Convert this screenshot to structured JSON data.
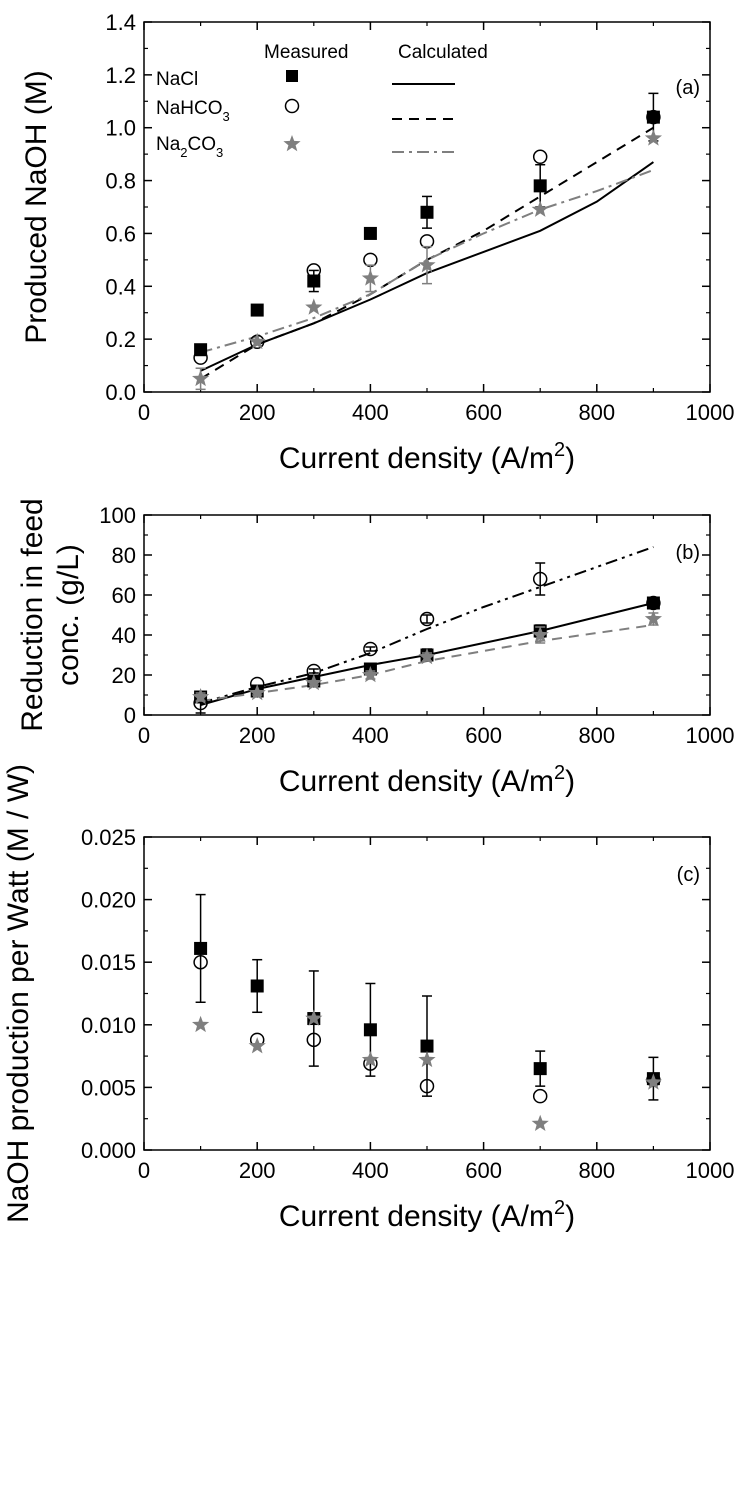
{
  "colors": {
    "nacl": "#000000",
    "nahco3": "#000000",
    "na2co3": "#7f7f7f"
  },
  "legend": {
    "measured_header": "Measured",
    "calculated_header": "Calculated",
    "nacl_label": "NaCl",
    "nahco3_label": "NaHCO",
    "nahco3_sub": "3",
    "na2co3_label_a": "Na",
    "na2co3_sub_a": "2",
    "na2co3_label_b": "CO",
    "na2co3_sub_b": "3"
  },
  "chart_data": [
    {
      "type": "scatter",
      "panel_label": "(a)",
      "xlabel": "Current density (A/m",
      "xlabel_sup": "2",
      "xlabel_end": ")",
      "ylabel": "Produced NaOH (M)",
      "xlim": [
        0,
        1000
      ],
      "ylim": [
        0,
        1.4
      ],
      "xticks": [
        "0",
        "200",
        "400",
        "600",
        "800",
        "1000"
      ],
      "yticks": [
        "0.0",
        "0.2",
        "0.4",
        "0.6",
        "0.8",
        "1.0",
        "1.2",
        "1.4"
      ],
      "measured": [
        {
          "name": "NaCl",
          "marker": "square",
          "color": "#000000",
          "x": [
            100,
            200,
            300,
            400,
            500,
            700,
            900
          ],
          "y": [
            0.16,
            0.31,
            0.42,
            0.6,
            0.68,
            0.78,
            1.04
          ],
          "err": [
            0.0,
            0.0,
            0.04,
            0.0,
            0.06,
            0.08,
            0.09
          ]
        },
        {
          "name": "NaHCO3",
          "marker": "circle",
          "color": "#000000",
          "x": [
            100,
            200,
            300,
            400,
            500,
            700,
            900
          ],
          "y": [
            0.13,
            0.19,
            0.46,
            0.5,
            0.57,
            0.89,
            1.04
          ],
          "err": [
            0.0,
            0.0,
            0.0,
            0.0,
            0.0,
            0.0,
            0.0
          ]
        },
        {
          "name": "Na2CO3",
          "marker": "star",
          "color": "#7f7f7f",
          "x": [
            100,
            200,
            300,
            400,
            500,
            700,
            900
          ],
          "y": [
            0.05,
            0.19,
            0.32,
            0.43,
            0.48,
            0.69,
            0.96
          ],
          "err": [
            0.04,
            0.0,
            0.0,
            0.05,
            0.07,
            0.0,
            0.0
          ]
        }
      ],
      "calculated": [
        {
          "name": "NaCl",
          "style": "solid",
          "color": "#000000",
          "x": [
            100,
            200,
            300,
            400,
            500,
            600,
            700,
            800,
            900
          ],
          "y": [
            0.08,
            0.18,
            0.26,
            0.35,
            0.45,
            0.53,
            0.61,
            0.72,
            0.87
          ]
        },
        {
          "name": "NaHCO3",
          "style": "dash",
          "color": "#000000",
          "x": [
            100,
            200,
            300,
            400,
            500,
            600,
            700,
            800,
            900
          ],
          "y": [
            0.05,
            0.18,
            0.26,
            0.37,
            0.5,
            0.61,
            0.74,
            0.87,
            1.0
          ]
        },
        {
          "name": "Na2CO3",
          "style": "dashdot",
          "color": "#7f7f7f",
          "x": [
            100,
            200,
            300,
            400,
            500,
            600,
            700,
            800,
            900
          ],
          "y": [
            0.15,
            0.21,
            0.28,
            0.37,
            0.5,
            0.6,
            0.69,
            0.76,
            0.84
          ]
        }
      ]
    },
    {
      "type": "scatter",
      "panel_label": "(b)",
      "xlabel": "Current density (A/m",
      "xlabel_sup": "2",
      "xlabel_end": ")",
      "ylabel_line1": "Reduction in feed",
      "ylabel_line2": "conc. (g/L)",
      "xlim": [
        0,
        1000
      ],
      "ylim": [
        0,
        100
      ],
      "xticks": [
        "0",
        "200",
        "400",
        "600",
        "800",
        "1000"
      ],
      "yticks": [
        "0",
        "20",
        "40",
        "60",
        "80",
        "100"
      ],
      "measured": [
        {
          "name": "NaCl",
          "marker": "square",
          "color": "#000000",
          "x": [
            100,
            200,
            300,
            400,
            500,
            700,
            900
          ],
          "y": [
            9,
            12,
            17,
            23,
            30,
            42,
            56
          ],
          "err": [
            0,
            2,
            2,
            2,
            3,
            3,
            0
          ]
        },
        {
          "name": "NaHCO3",
          "marker": "circle",
          "color": "#000000",
          "x": [
            100,
            200,
            300,
            400,
            500,
            700,
            900
          ],
          "y": [
            6,
            15.5,
            22,
            33,
            48,
            68,
            56
          ],
          "err": [
            5,
            0,
            1,
            1,
            2,
            8,
            0
          ]
        },
        {
          "name": "Na2CO3",
          "marker": "star",
          "color": "#7f7f7f",
          "x": [
            100,
            200,
            300,
            400,
            500,
            700,
            900
          ],
          "y": [
            9,
            11,
            16,
            20,
            29,
            40,
            48
          ],
          "err": [
            2,
            1,
            1,
            2,
            2,
            4,
            3
          ]
        }
      ],
      "calculated": [
        {
          "name": "NaCl",
          "style": "solid",
          "color": "#000000",
          "x": [
            100,
            200,
            300,
            400,
            500,
            600,
            700,
            800,
            900
          ],
          "y": [
            5,
            13,
            19,
            25,
            30,
            36,
            42,
            49,
            56
          ]
        },
        {
          "name": "NaHCO3",
          "style": "dashdotdot",
          "color": "#000000",
          "x": [
            100,
            200,
            300,
            400,
            500,
            600,
            700,
            800,
            900
          ],
          "y": [
            6,
            14,
            21,
            31,
            43,
            54,
            64,
            74,
            84
          ]
        },
        {
          "name": "Na2CO3",
          "style": "dash",
          "color": "#7f7f7f",
          "x": [
            100,
            200,
            300,
            400,
            500,
            600,
            700,
            800,
            900
          ],
          "y": [
            7,
            11,
            15,
            20,
            27,
            32,
            37,
            41,
            45
          ]
        }
      ]
    },
    {
      "type": "scatter",
      "panel_label": "(c)",
      "xlabel": "Current density (A/m",
      "xlabel_sup": "2",
      "xlabel_end": ")",
      "ylabel": "NaOH production per Watt (M / W)",
      "xlim": [
        0,
        1000
      ],
      "ylim": [
        0,
        0.025
      ],
      "xticks": [
        "0",
        "200",
        "400",
        "600",
        "800",
        "1000"
      ],
      "yticks": [
        "0.000",
        "0.005",
        "0.010",
        "0.015",
        "0.020",
        "0.025"
      ],
      "measured": [
        {
          "name": "NaCl",
          "marker": "square",
          "color": "#000000",
          "x": [
            100,
            200,
            300,
            400,
            500,
            700,
            900
          ],
          "y": [
            0.0161,
            0.0131,
            0.0105,
            0.0096,
            0.0083,
            0.0065,
            0.0057
          ],
          "err": [
            0.0043,
            0.0021,
            0.0038,
            0.0037,
            0.004,
            0.0014,
            0.0017
          ]
        },
        {
          "name": "NaHCO3",
          "marker": "circle",
          "color": "#000000",
          "x": [
            100,
            200,
            300,
            400,
            500,
            700,
            900
          ],
          "y": [
            0.015,
            0.0088,
            0.0088,
            0.0069,
            0.0051,
            0.0043,
            0.0056
          ],
          "err": [
            0,
            0,
            0,
            0,
            0,
            0,
            0
          ]
        },
        {
          "name": "Na2CO3",
          "marker": "star",
          "color": "#7f7f7f",
          "x": [
            100,
            200,
            300,
            400,
            500,
            700,
            900
          ],
          "y": [
            0.01,
            0.0083,
            0.0105,
            0.0072,
            0.0072,
            0.0021,
            0.0054
          ],
          "err": [
            0,
            0,
            0,
            0,
            0,
            0,
            0
          ]
        }
      ],
      "calculated": []
    }
  ]
}
